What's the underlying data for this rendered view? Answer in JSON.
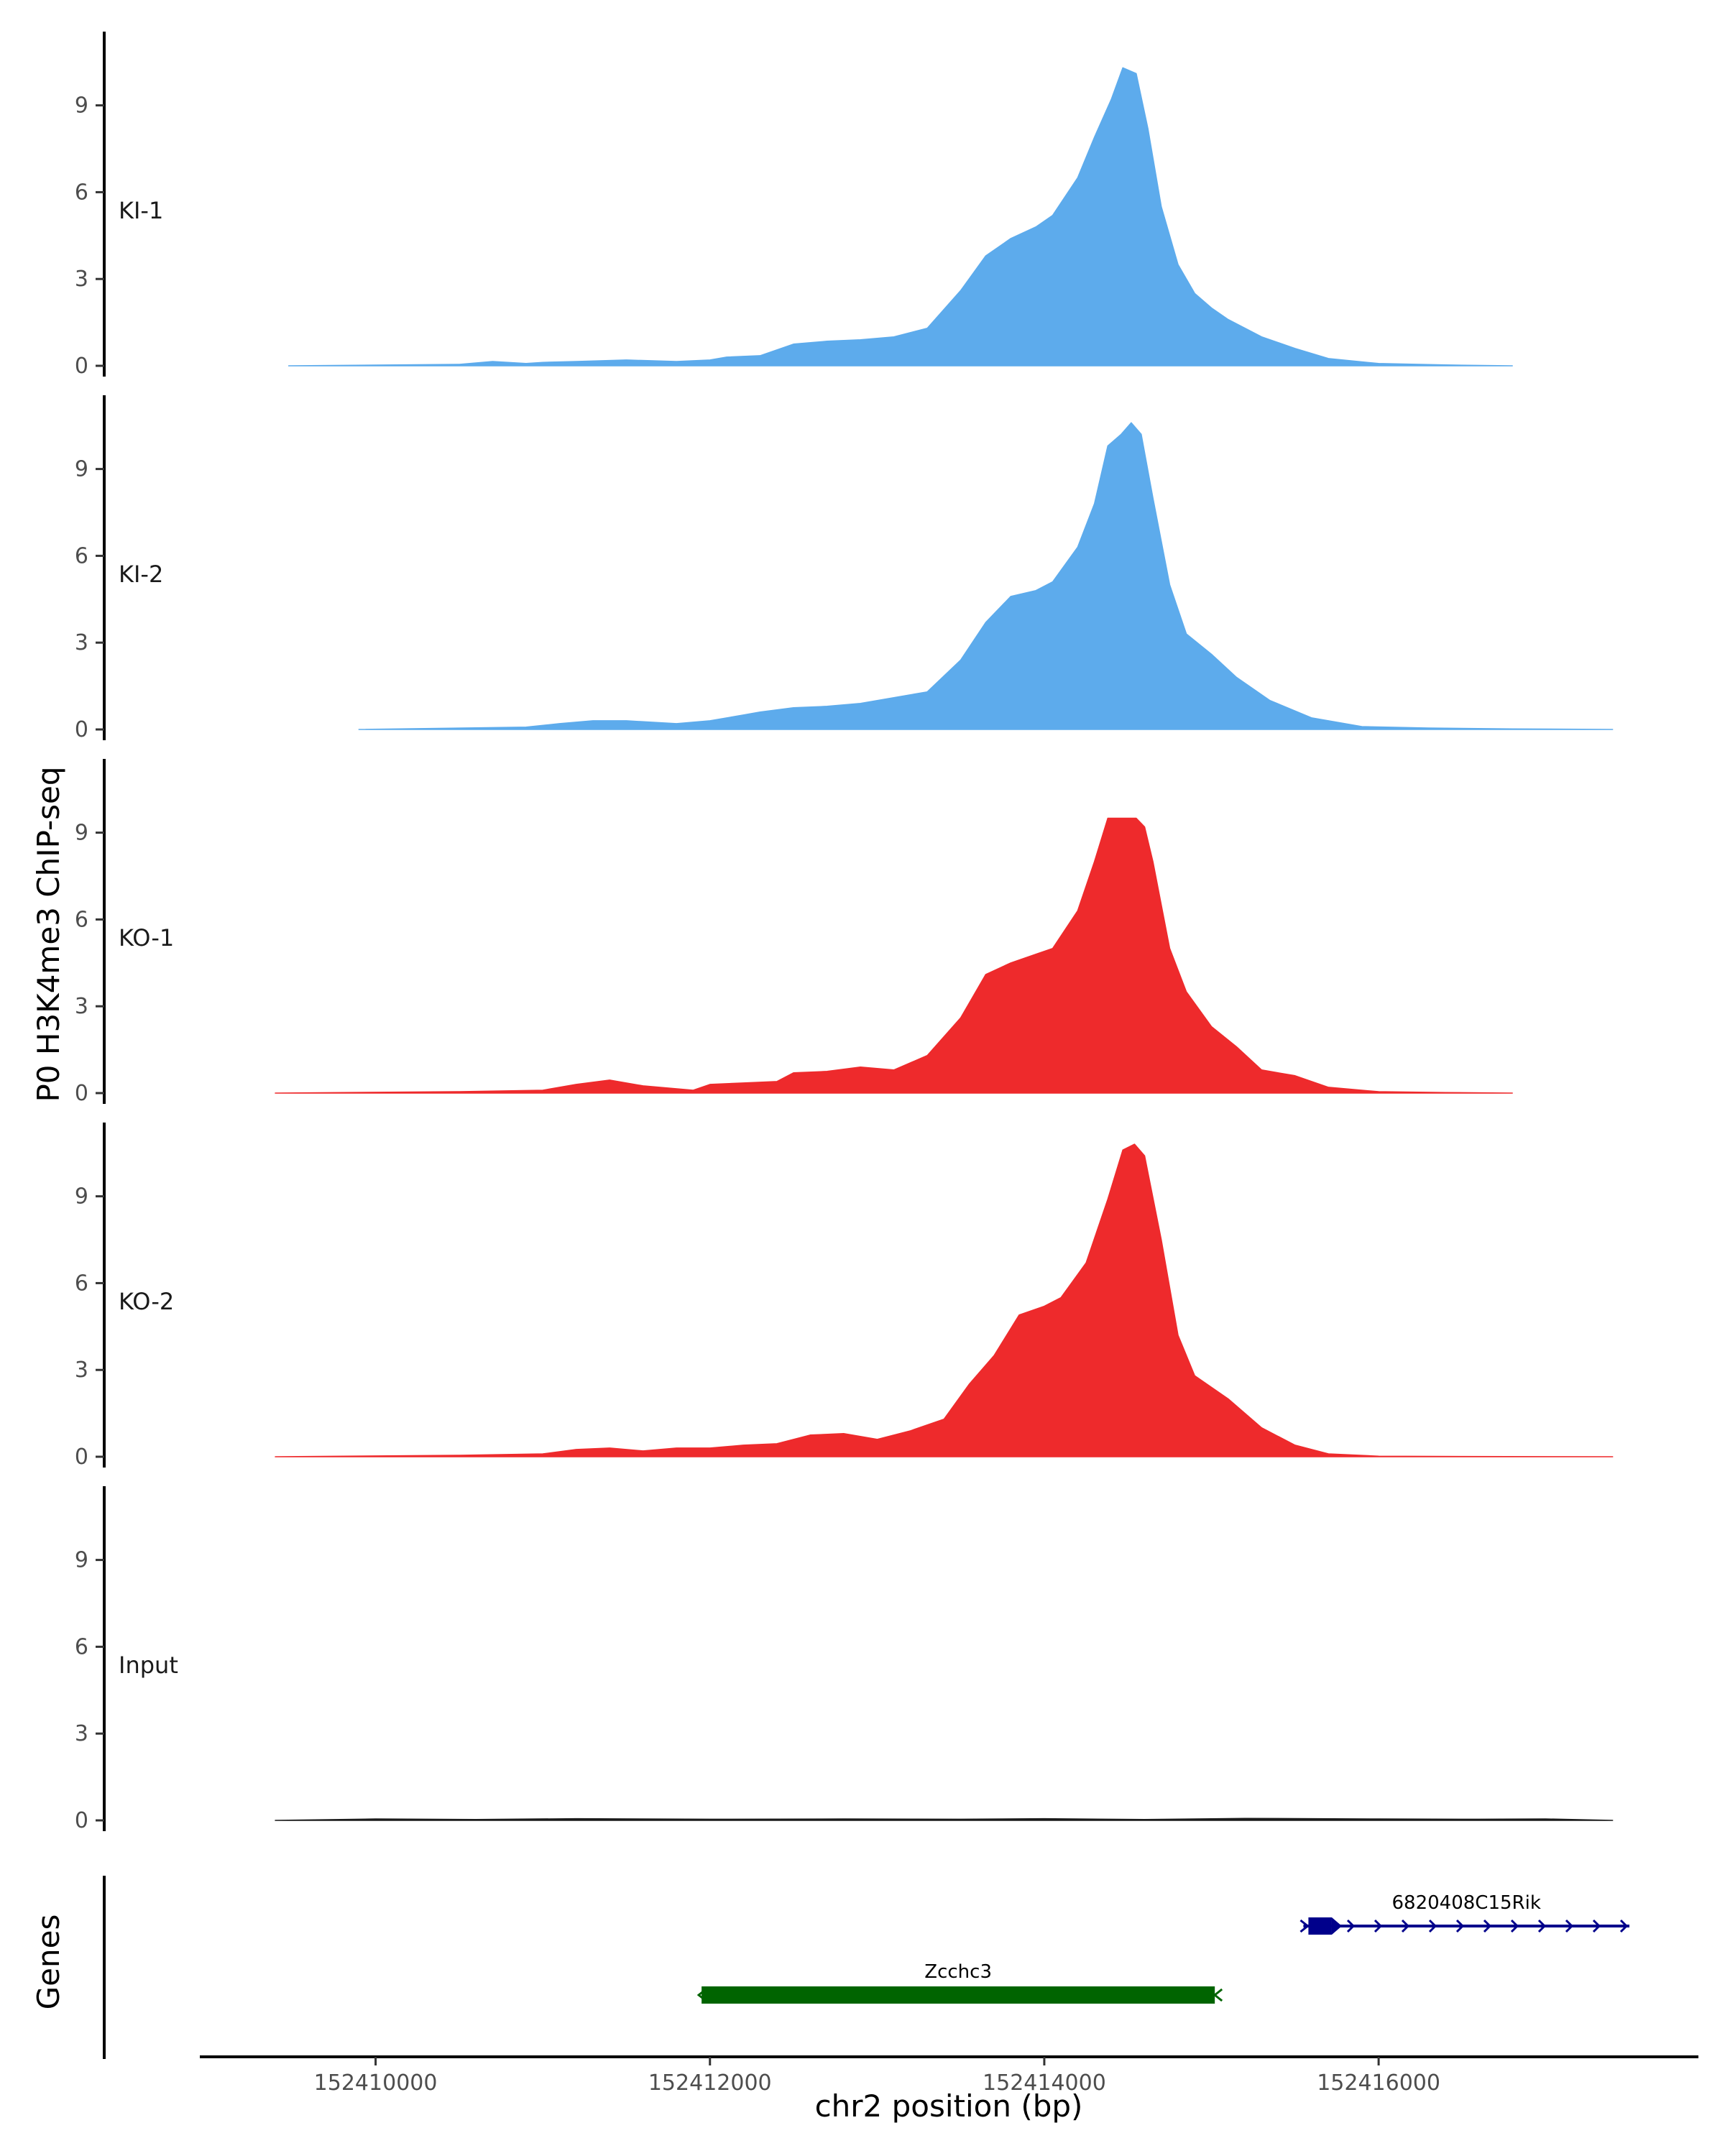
{
  "chart_data": {
    "type": "area",
    "title": "",
    "ylabel": "P0 H3K4me3 ChIP-seq",
    "xlabel": "chr2 position (bp)",
    "genes_label": "Genes",
    "xlim": [
      152409000,
      152417900
    ],
    "ylim": [
      0,
      11.3
    ],
    "y_ticks": [
      0,
      3,
      6,
      9
    ],
    "y_tick_labels": [
      "0",
      "3",
      "6",
      "9"
    ],
    "x_ticks": [
      152410000,
      152412000,
      152414000,
      152416000
    ],
    "x_tick_labels": [
      "152410000",
      "152412000",
      "152414000",
      "152416000"
    ],
    "colors": {
      "KI": "#5dabec",
      "KO": "#ee2a2c",
      "Input": "#1a1a1a",
      "gene_plus": "#00008b",
      "gene_minus": "#006400",
      "axis": "#000000"
    },
    "tracks": [
      {
        "name": "KI-1",
        "color": "#5dabec",
        "x": [
          152409480,
          152410500,
          152410700,
          152410900,
          152411000,
          152411200,
          152411500,
          152411800,
          152412000,
          152412100,
          152412300,
          152412500,
          152412700,
          152412900,
          152413100,
          152413300,
          152413500,
          152413650,
          152413800,
          152413950,
          152414050,
          152414200,
          152414300,
          152414400,
          152414470,
          152414550,
          152414620,
          152414700,
          152414800,
          152414900,
          152415000,
          152415100,
          152415300,
          152415500,
          152415700,
          152416000,
          152416400,
          152416800
        ],
        "y": [
          0,
          0.05,
          0.15,
          0.08,
          0.12,
          0.15,
          0.2,
          0.15,
          0.2,
          0.3,
          0.35,
          0.75,
          0.85,
          0.9,
          1.0,
          1.3,
          2.6,
          3.8,
          4.4,
          4.8,
          5.2,
          6.5,
          7.9,
          9.2,
          10.3,
          10.1,
          8.2,
          5.5,
          3.5,
          2.5,
          2.0,
          1.6,
          1.0,
          0.6,
          0.25,
          0.08,
          0.03,
          0
        ]
      },
      {
        "name": "KI-2",
        "color": "#5dabec",
        "x": [
          152409900,
          152410900,
          152411100,
          152411300,
          152411500,
          152411800,
          152412000,
          152412200,
          152412300,
          152412500,
          152412700,
          152412900,
          152413100,
          152413300,
          152413500,
          152413650,
          152413800,
          152413950,
          152414050,
          152414200,
          152414300,
          152414380,
          152414460,
          152414520,
          152414580,
          152414650,
          152414750,
          152414850,
          152415000,
          152415150,
          152415350,
          152415600,
          152415900,
          152416300,
          152416800,
          152417400
        ],
        "y": [
          0,
          0.08,
          0.2,
          0.3,
          0.3,
          0.2,
          0.3,
          0.5,
          0.6,
          0.75,
          0.8,
          0.9,
          1.1,
          1.3,
          2.4,
          3.7,
          4.6,
          4.8,
          5.1,
          6.3,
          7.8,
          9.8,
          10.2,
          10.6,
          10.2,
          8.0,
          5.0,
          3.3,
          2.6,
          1.8,
          1.0,
          0.4,
          0.1,
          0.05,
          0.02,
          0
        ]
      },
      {
        "name": "KO-1",
        "color": "#ee2a2c",
        "x": [
          152409400,
          152410500,
          152411000,
          152411200,
          152411400,
          152411600,
          152411900,
          152412000,
          152412200,
          152412400,
          152412500,
          152412700,
          152412900,
          152413100,
          152413300,
          152413500,
          152413650,
          152413800,
          152413950,
          152414050,
          152414200,
          152414300,
          152414380,
          152414460,
          152414550,
          152414600,
          152414650,
          152414750,
          152414850,
          152415000,
          152415150,
          152415300,
          152415500,
          152415700,
          152416000,
          152416400,
          152416800
        ],
        "y": [
          0,
          0.05,
          0.1,
          0.3,
          0.45,
          0.25,
          0.1,
          0.3,
          0.35,
          0.4,
          0.7,
          0.75,
          0.9,
          0.8,
          1.3,
          2.6,
          4.1,
          4.5,
          4.8,
          5.0,
          6.3,
          8.0,
          9.5,
          9.5,
          9.5,
          9.2,
          8.0,
          5.0,
          3.5,
          2.3,
          1.6,
          0.8,
          0.6,
          0.2,
          0.05,
          0.02,
          0
        ]
      },
      {
        "name": "KO-2",
        "color": "#ee2a2c",
        "x": [
          152409400,
          152410500,
          152411000,
          152411200,
          152411400,
          152411600,
          152411800,
          152412000,
          152412200,
          152412400,
          152412600,
          152412800,
          152413000,
          152413200,
          152413400,
          152413550,
          152413700,
          152413850,
          152414000,
          152414100,
          152414250,
          152414380,
          152414470,
          152414540,
          152414600,
          152414700,
          152414800,
          152414900,
          152415100,
          152415300,
          152415500,
          152415700,
          152416000,
          152416500,
          152417400
        ],
        "y": [
          0,
          0.05,
          0.1,
          0.25,
          0.3,
          0.2,
          0.3,
          0.3,
          0.4,
          0.45,
          0.75,
          0.8,
          0.6,
          0.9,
          1.3,
          2.5,
          3.5,
          4.9,
          5.2,
          5.5,
          6.7,
          8.9,
          10.6,
          10.8,
          10.4,
          7.5,
          4.2,
          2.8,
          2.0,
          1.0,
          0.4,
          0.1,
          0.02,
          0.01,
          0
        ]
      },
      {
        "name": "Input",
        "color": "#1a1a1a",
        "x": [
          152409400,
          152410000,
          152410600,
          152411200,
          152412000,
          152412800,
          152413500,
          152414000,
          152414600,
          152415200,
          152416000,
          152416600,
          152417000,
          152417400
        ],
        "y": [
          0,
          0.05,
          0.03,
          0.06,
          0.04,
          0.05,
          0.04,
          0.06,
          0.03,
          0.07,
          0.05,
          0.04,
          0.05,
          0
        ]
      }
    ],
    "genes": [
      {
        "name": "Zcchc3",
        "start": 152411950,
        "end": 152415020,
        "strand": "-",
        "color": "#006400",
        "row": 2
      },
      {
        "name": "6820408C15Rik",
        "start": 152415550,
        "end": 152417500,
        "strand": "+",
        "color": "#00008b",
        "row": 1,
        "exon_start": 152415580,
        "exon_end": 152415720
      }
    ]
  }
}
